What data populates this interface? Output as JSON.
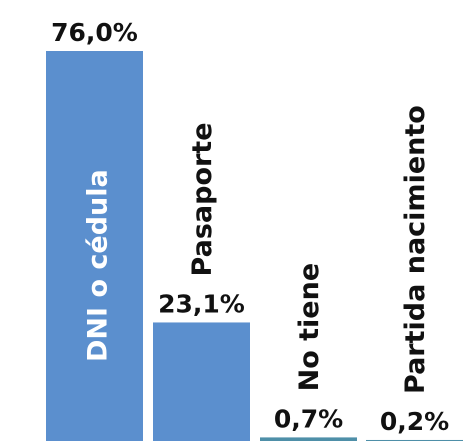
{
  "chart_data": {
    "type": "bar",
    "categories": [
      "DNI o cédula",
      "Pasaporte",
      "No tiene",
      "Partida nacimiento"
    ],
    "values": [
      76.0,
      23.1,
      0.7,
      0.2
    ],
    "value_labels": [
      "76,0%",
      "23,1%",
      "0,7%",
      "0,2%"
    ],
    "unit": "%",
    "ylim": [
      0,
      76
    ],
    "grid": false,
    "legend": "none",
    "colors": {
      "bar": "#5B8FCE",
      "small_bar": "#4E8FA8",
      "inside_label": "#FFFFFF",
      "outside_label": "#111111"
    }
  }
}
